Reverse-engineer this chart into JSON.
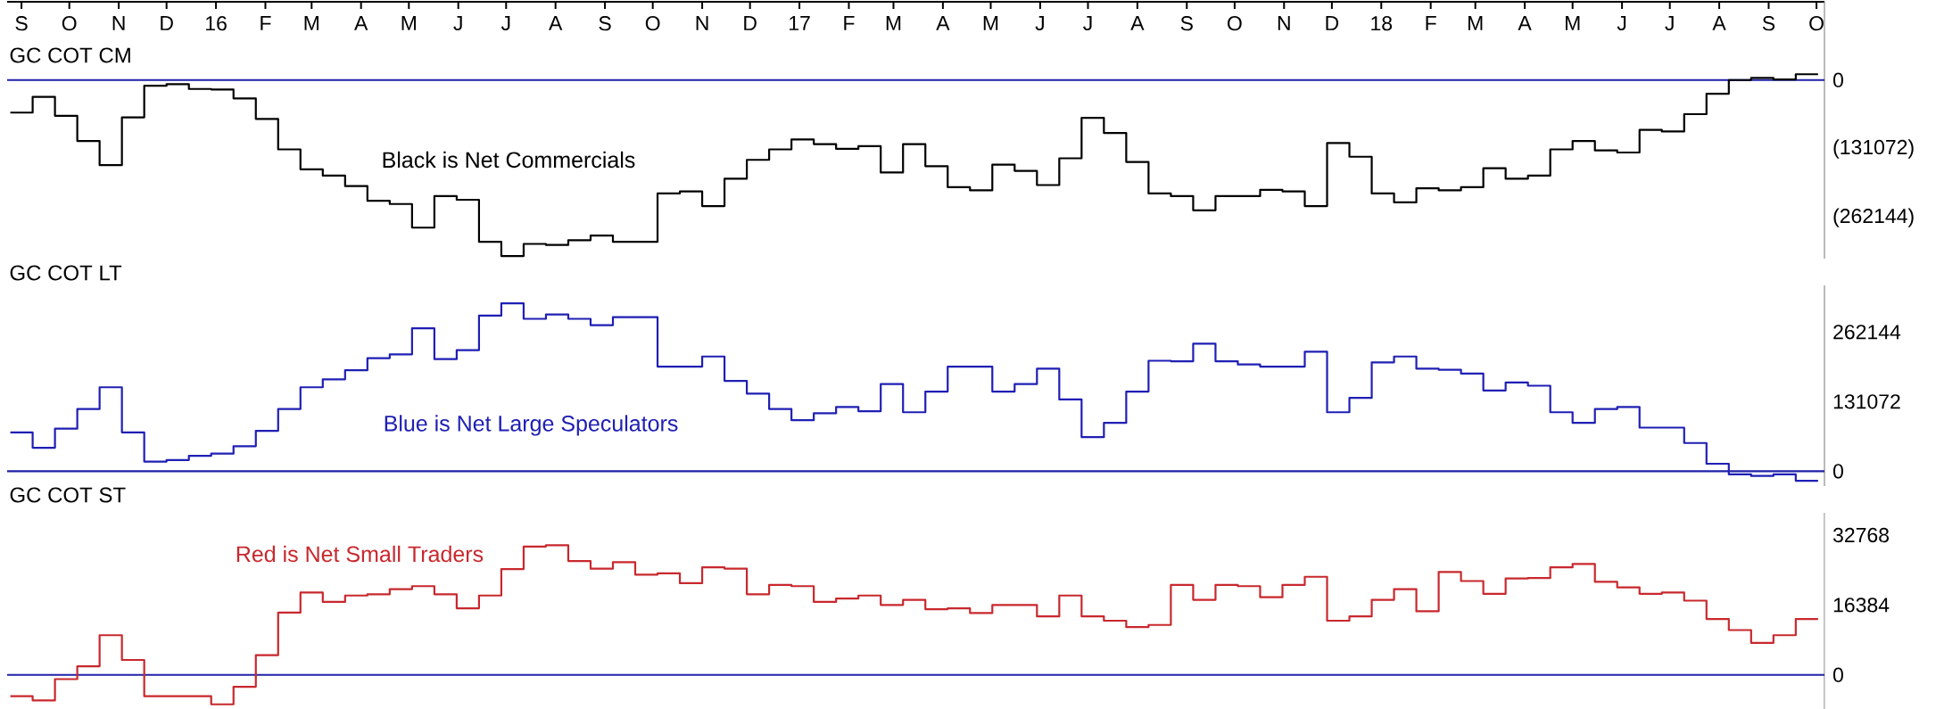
{
  "chart_data": [
    {
      "type": "step",
      "title": "GC COT CM",
      "annotations": [
        "Black is Net Commercials"
      ],
      "color": "#000000",
      "xlim": [
        "2015-08-23",
        "2018-10-06"
      ],
      "xticks": [
        {
          "value": "2015-09-01",
          "label": "S"
        },
        {
          "value": "2015-10-01",
          "label": "O"
        },
        {
          "value": "2015-11-01",
          "label": "N"
        },
        {
          "value": "2015-12-01",
          "label": "D"
        },
        {
          "value": "2016-01-01",
          "label": "16"
        },
        {
          "value": "2016-02-01",
          "label": "F"
        },
        {
          "value": "2016-03-01",
          "label": "M"
        },
        {
          "value": "2016-04-01",
          "label": "A"
        },
        {
          "value": "2016-05-01",
          "label": "M"
        },
        {
          "value": "2016-06-01",
          "label": "J"
        },
        {
          "value": "2016-07-01",
          "label": "J"
        },
        {
          "value": "2016-08-01",
          "label": "A"
        },
        {
          "value": "2016-09-01",
          "label": "S"
        },
        {
          "value": "2016-10-01",
          "label": "O"
        },
        {
          "value": "2016-11-01",
          "label": "N"
        },
        {
          "value": "2016-12-01",
          "label": "D"
        },
        {
          "value": "2017-01-01",
          "label": "17"
        },
        {
          "value": "2017-02-01",
          "label": "F"
        },
        {
          "value": "2017-03-01",
          "label": "M"
        },
        {
          "value": "2017-04-01",
          "label": "A"
        },
        {
          "value": "2017-05-01",
          "label": "M"
        },
        {
          "value": "2017-06-01",
          "label": "J"
        },
        {
          "value": "2017-07-01",
          "label": "J"
        },
        {
          "value": "2017-08-01",
          "label": "A"
        },
        {
          "value": "2017-09-01",
          "label": "S"
        },
        {
          "value": "2017-10-01",
          "label": "O"
        },
        {
          "value": "2017-11-01",
          "label": "N"
        },
        {
          "value": "2017-12-01",
          "label": "D"
        },
        {
          "value": "2018-01-01",
          "label": "18"
        },
        {
          "value": "2018-02-01",
          "label": "F"
        },
        {
          "value": "2018-03-01",
          "label": "M"
        },
        {
          "value": "2018-04-01",
          "label": "A"
        },
        {
          "value": "2018-05-01",
          "label": "M"
        },
        {
          "value": "2018-06-01",
          "label": "J"
        },
        {
          "value": "2018-07-01",
          "label": "J"
        },
        {
          "value": "2018-08-01",
          "label": "A"
        },
        {
          "value": "2018-09-01",
          "label": "S"
        },
        {
          "value": "2018-10-01",
          "label": "O"
        }
      ],
      "ylim": [
        -340000,
        149000
      ],
      "yticks": [
        {
          "value": 0,
          "label": "0"
        },
        {
          "value": -131072,
          "label": "(131072)"
        },
        {
          "value": -262144,
          "label": "(262144)"
        }
      ],
      "ref_lines": [
        {
          "axis": "y",
          "value": 0,
          "color": "#2020a8"
        }
      ],
      "x": [
        "2015-08-25",
        "2015-09-08",
        "2015-09-22",
        "2015-10-06",
        "2015-10-20",
        "2015-11-03",
        "2015-11-17",
        "2015-12-01",
        "2015-12-15",
        "2015-12-29",
        "2016-01-12",
        "2016-01-26",
        "2016-02-09",
        "2016-02-23",
        "2016-03-08",
        "2016-03-22",
        "2016-04-05",
        "2016-04-19",
        "2016-05-03",
        "2016-05-17",
        "2016-05-31",
        "2016-06-14",
        "2016-06-28",
        "2016-07-12",
        "2016-07-26",
        "2016-08-09",
        "2016-08-23",
        "2016-09-06",
        "2016-09-20",
        "2016-10-04",
        "2016-10-18",
        "2016-11-01",
        "2016-11-15",
        "2016-11-29",
        "2016-12-13",
        "2016-12-27",
        "2017-01-10",
        "2017-01-24",
        "2017-02-07",
        "2017-02-21",
        "2017-03-07",
        "2017-03-21",
        "2017-04-04",
        "2017-04-18",
        "2017-05-02",
        "2017-05-16",
        "2017-05-30",
        "2017-06-13",
        "2017-06-27",
        "2017-07-11",
        "2017-07-25",
        "2017-08-08",
        "2017-08-22",
        "2017-09-05",
        "2017-09-19",
        "2017-10-03",
        "2017-10-17",
        "2017-10-31",
        "2017-11-14",
        "2017-11-28",
        "2017-12-12",
        "2017-12-26",
        "2018-01-09",
        "2018-01-23",
        "2018-02-06",
        "2018-02-20",
        "2018-03-06",
        "2018-03-20",
        "2018-04-03",
        "2018-04-17",
        "2018-05-01",
        "2018-05-15",
        "2018-05-29",
        "2018-06-12",
        "2018-06-26",
        "2018-07-10",
        "2018-07-24",
        "2018-08-07",
        "2018-08-21",
        "2018-09-04",
        "2018-09-18",
        "2018-10-02"
      ],
      "values": [
        -62000,
        -32000,
        -68000,
        -116000,
        -162000,
        -71000,
        -11000,
        -8000,
        -17000,
        -18000,
        -35000,
        -74000,
        -132000,
        -170000,
        -182000,
        -202000,
        -230000,
        -236000,
        -281000,
        -221000,
        -228000,
        -308000,
        -335000,
        -312000,
        -314000,
        -305000,
        -296000,
        -308000,
        -308000,
        -216000,
        -212000,
        -240000,
        -188000,
        -152000,
        -132000,
        -113000,
        -122000,
        -131000,
        -126000,
        -176000,
        -122000,
        -164000,
        -204000,
        -210000,
        -161000,
        -173000,
        -200000,
        -149000,
        -72000,
        -101000,
        -156000,
        -216000,
        -221000,
        -248000,
        -221000,
        -221000,
        -209000,
        -212000,
        -240000,
        -120000,
        -146000,
        -216000,
        -233000,
        -206000,
        -210000,
        -204000,
        -168000,
        -188000,
        -182000,
        -132000,
        -116000,
        -134000,
        -138000,
        -95000,
        -98000,
        -65000,
        -26000,
        0,
        4000,
        1000,
        11000,
        11000
      ]
    },
    {
      "type": "step",
      "title": "GC COT LT",
      "annotations": [
        "Blue is Net Large Speculators"
      ],
      "color": "#1f1fb4",
      "xlim": [
        "2015-08-23",
        "2018-10-06"
      ],
      "tick_labels": "y",
      "ylim": [
        -28000,
        350000
      ],
      "yticks": [
        0,
        131072,
        262144
      ],
      "ref_lines": [
        {
          "axis": "y",
          "value": 0,
          "color": "#2020a8"
        }
      ],
      "x": [
        "2015-08-25",
        "2015-09-08",
        "2015-09-22",
        "2015-10-06",
        "2015-10-20",
        "2015-11-03",
        "2015-11-17",
        "2015-12-01",
        "2015-12-15",
        "2015-12-29",
        "2016-01-12",
        "2016-01-26",
        "2016-02-09",
        "2016-02-23",
        "2016-03-08",
        "2016-03-22",
        "2016-04-05",
        "2016-04-19",
        "2016-05-03",
        "2016-05-17",
        "2016-05-31",
        "2016-06-14",
        "2016-06-28",
        "2016-07-12",
        "2016-07-26",
        "2016-08-09",
        "2016-08-23",
        "2016-09-06",
        "2016-09-20",
        "2016-10-04",
        "2016-10-18",
        "2016-11-01",
        "2016-11-15",
        "2016-11-29",
        "2016-12-13",
        "2016-12-27",
        "2017-01-10",
        "2017-01-24",
        "2017-02-07",
        "2017-02-21",
        "2017-03-07",
        "2017-03-21",
        "2017-04-04",
        "2017-04-18",
        "2017-05-02",
        "2017-05-16",
        "2017-05-30",
        "2017-06-13",
        "2017-06-27",
        "2017-07-11",
        "2017-07-25",
        "2017-08-08",
        "2017-08-22",
        "2017-09-05",
        "2017-09-19",
        "2017-10-03",
        "2017-10-17",
        "2017-10-31",
        "2017-11-14",
        "2017-11-28",
        "2017-12-12",
        "2017-12-26",
        "2018-01-09",
        "2018-01-23",
        "2018-02-06",
        "2018-02-20",
        "2018-03-06",
        "2018-03-20",
        "2018-04-03",
        "2018-04-17",
        "2018-05-01",
        "2018-05-15",
        "2018-05-29",
        "2018-06-12",
        "2018-06-26",
        "2018-07-10",
        "2018-07-24",
        "2018-08-07",
        "2018-08-21",
        "2018-09-04",
        "2018-09-18",
        "2018-10-02"
      ],
      "values": [
        73000,
        44000,
        80000,
        117000,
        158000,
        73000,
        18000,
        21000,
        29000,
        33000,
        47000,
        76000,
        117000,
        158000,
        173000,
        190000,
        213000,
        220000,
        269000,
        211000,
        228000,
        293000,
        316000,
        287000,
        295000,
        287000,
        275000,
        290000,
        290000,
        197000,
        197000,
        216000,
        170000,
        146000,
        117000,
        96000,
        109000,
        121000,
        113000,
        164000,
        111000,
        150000,
        197000,
        197000,
        150000,
        164000,
        193000,
        135000,
        64000,
        91000,
        150000,
        208000,
        207000,
        240000,
        207000,
        201000,
        197000,
        197000,
        225000,
        111000,
        138000,
        205000,
        216000,
        193000,
        191000,
        184000,
        152000,
        167000,
        161000,
        111000,
        91000,
        117000,
        121000,
        82000,
        82000,
        53000,
        14000,
        -6000,
        -9000,
        -6000,
        -18000,
        -18000
      ]
    },
    {
      "type": "step",
      "title": "GC COT ST",
      "annotations": [
        "Red is Net Small Traders"
      ],
      "color": "#c8282d",
      "xlim": [
        "2015-08-23",
        "2018-10-06"
      ],
      "tick_labels": "y",
      "ylim": [
        -8000,
        38000
      ],
      "yticks": [
        0,
        16384,
        32768
      ],
      "ref_lines": [
        {
          "axis": "y",
          "value": 0,
          "color": "#2020a8"
        }
      ],
      "x": [
        "2015-08-25",
        "2015-09-08",
        "2015-09-22",
        "2015-10-06",
        "2015-10-20",
        "2015-11-03",
        "2015-11-17",
        "2015-12-01",
        "2015-12-15",
        "2015-12-29",
        "2016-01-12",
        "2016-01-26",
        "2016-02-09",
        "2016-02-23",
        "2016-03-08",
        "2016-03-22",
        "2016-04-05",
        "2016-04-19",
        "2016-05-03",
        "2016-05-17",
        "2016-05-31",
        "2016-06-14",
        "2016-06-28",
        "2016-07-12",
        "2016-07-26",
        "2016-08-09",
        "2016-08-23",
        "2016-09-06",
        "2016-09-20",
        "2016-10-04",
        "2016-10-18",
        "2016-11-01",
        "2016-11-15",
        "2016-11-29",
        "2016-12-13",
        "2016-12-27",
        "2017-01-10",
        "2017-01-24",
        "2017-02-07",
        "2017-02-21",
        "2017-03-07",
        "2017-03-21",
        "2017-04-04",
        "2017-04-18",
        "2017-05-02",
        "2017-05-16",
        "2017-05-30",
        "2017-06-13",
        "2017-06-27",
        "2017-07-11",
        "2017-07-25",
        "2017-08-08",
        "2017-08-22",
        "2017-09-05",
        "2017-09-19",
        "2017-10-03",
        "2017-10-17",
        "2017-10-31",
        "2017-11-14",
        "2017-11-28",
        "2017-12-12",
        "2017-12-26",
        "2018-01-09",
        "2018-01-23",
        "2018-02-06",
        "2018-02-20",
        "2018-03-06",
        "2018-03-20",
        "2018-04-03",
        "2018-04-17",
        "2018-05-01",
        "2018-05-15",
        "2018-05-29",
        "2018-06-12",
        "2018-06-26",
        "2018-07-10",
        "2018-07-24",
        "2018-08-07",
        "2018-08-21",
        "2018-09-04",
        "2018-09-18",
        "2018-10-02"
      ],
      "values": [
        -5000,
        -6000,
        -1000,
        2000,
        9300,
        3500,
        -5000,
        -5000,
        -5000,
        -6900,
        -2800,
        4600,
        14600,
        19300,
        17100,
        18600,
        18900,
        20100,
        20800,
        18900,
        15600,
        18600,
        24800,
        30100,
        30400,
        26700,
        24900,
        26400,
        23500,
        23800,
        21500,
        25200,
        24900,
        18900,
        21100,
        20800,
        17100,
        17900,
        18600,
        16400,
        17600,
        15400,
        15600,
        14500,
        16400,
        16400,
        13700,
        18600,
        13700,
        12700,
        11200,
        11700,
        21100,
        17600,
        21100,
        20800,
        18200,
        21100,
        23000,
        12700,
        13700,
        17600,
        20100,
        14900,
        24100,
        22000,
        19000,
        22600,
        22700,
        25200,
        26000,
        21800,
        20500,
        19000,
        19300,
        17400,
        13100,
        10500,
        7500,
        9300,
        13100,
        13100
      ]
    }
  ]
}
